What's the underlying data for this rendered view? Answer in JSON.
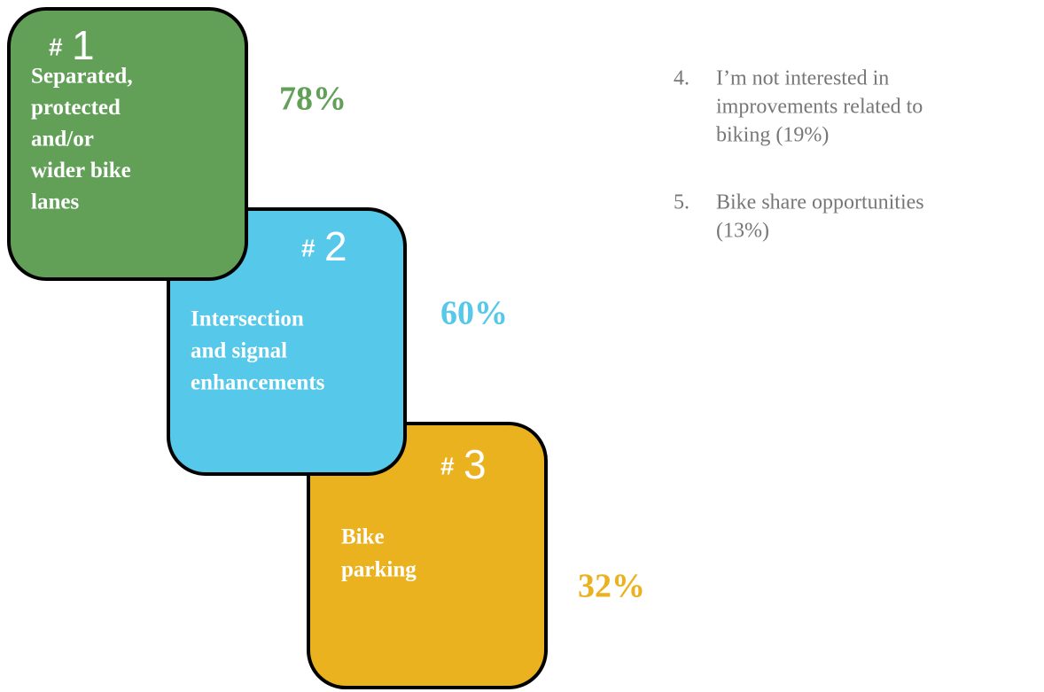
{
  "items": [
    {
      "marker": "#",
      "rank": "1",
      "label_lines": [
        "Separated,",
        "protected",
        "and/or",
        "wider bike",
        "lanes"
      ],
      "percent": "78%",
      "color": "#62a058"
    },
    {
      "marker": "#",
      "rank": "2",
      "label_lines": [
        "Intersection",
        "and signal",
        "enhancements"
      ],
      "percent": "60%",
      "color": "#56c8ea"
    },
    {
      "marker": "#",
      "rank": "3",
      "label_lines": [
        "Bike",
        "parking"
      ],
      "percent": "32%",
      "color": "#ebb220"
    }
  ],
  "others": [
    {
      "number": "4.",
      "lines": [
        "I’m not interested in",
        "improvements related to",
        "biking (19%)"
      ]
    },
    {
      "number": "5.",
      "lines": [
        "Bike share opportunities",
        "(13%)"
      ]
    }
  ]
}
